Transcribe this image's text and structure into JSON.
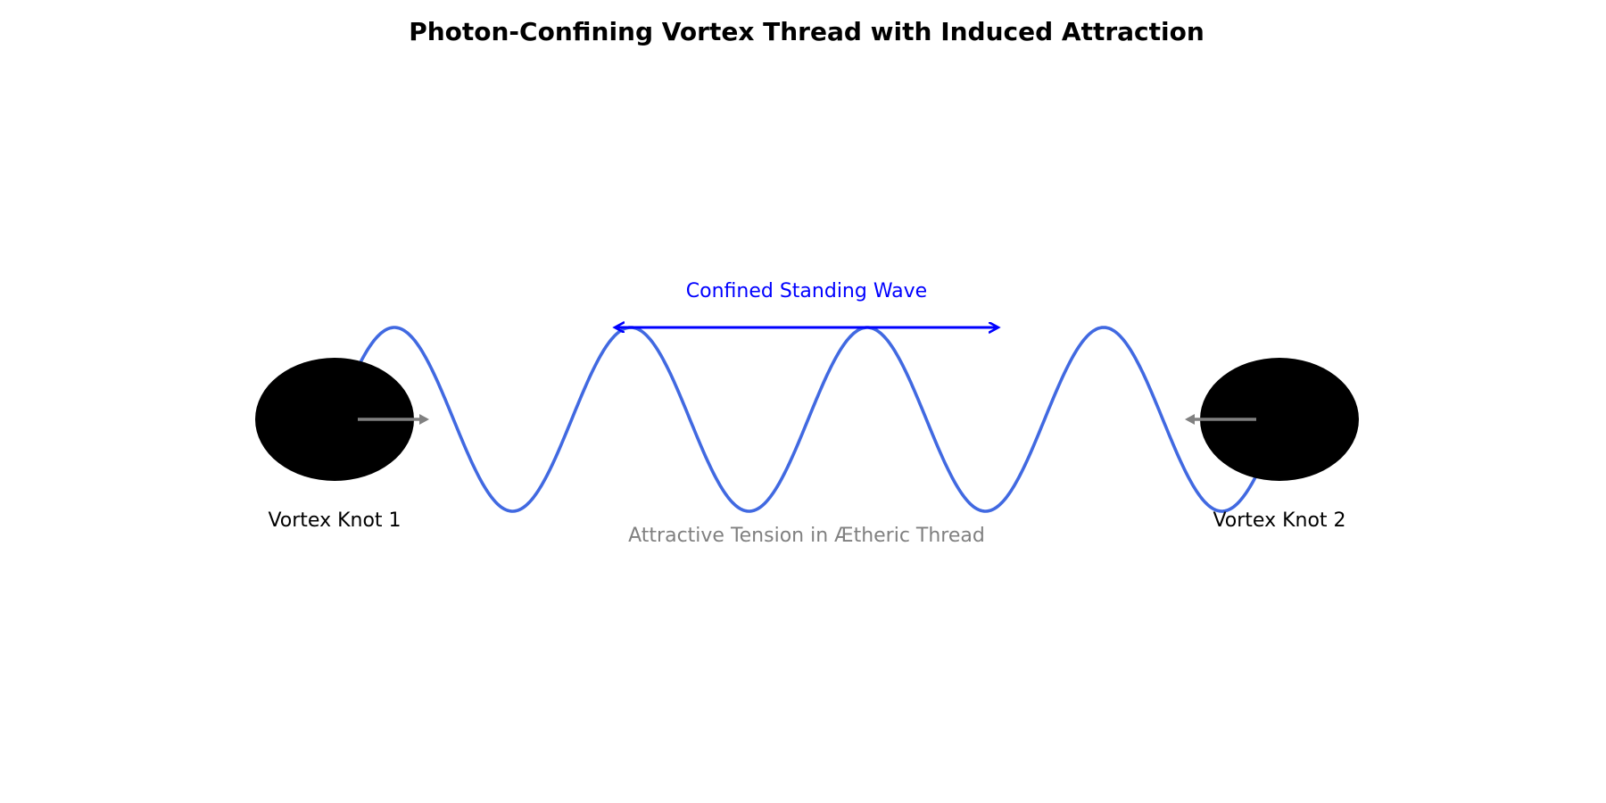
{
  "title": "Photon-Confining Vortex Thread with Induced Attraction",
  "knots": [
    {
      "label": "Vortex Knot 1"
    },
    {
      "label": "Vortex Knot 2"
    }
  ],
  "wave": {
    "label": "Confined Standing Wave",
    "label_color": "#0000ff",
    "line_color": "#4169e1",
    "peaks": 4,
    "troughs": 4
  },
  "tension_label": "Attractive Tension in Ætheric Thread",
  "colors": {
    "knot": "#000000",
    "force_arrow": "#808080",
    "tension_label": "#808080",
    "span_arrow": "#0000ff"
  }
}
